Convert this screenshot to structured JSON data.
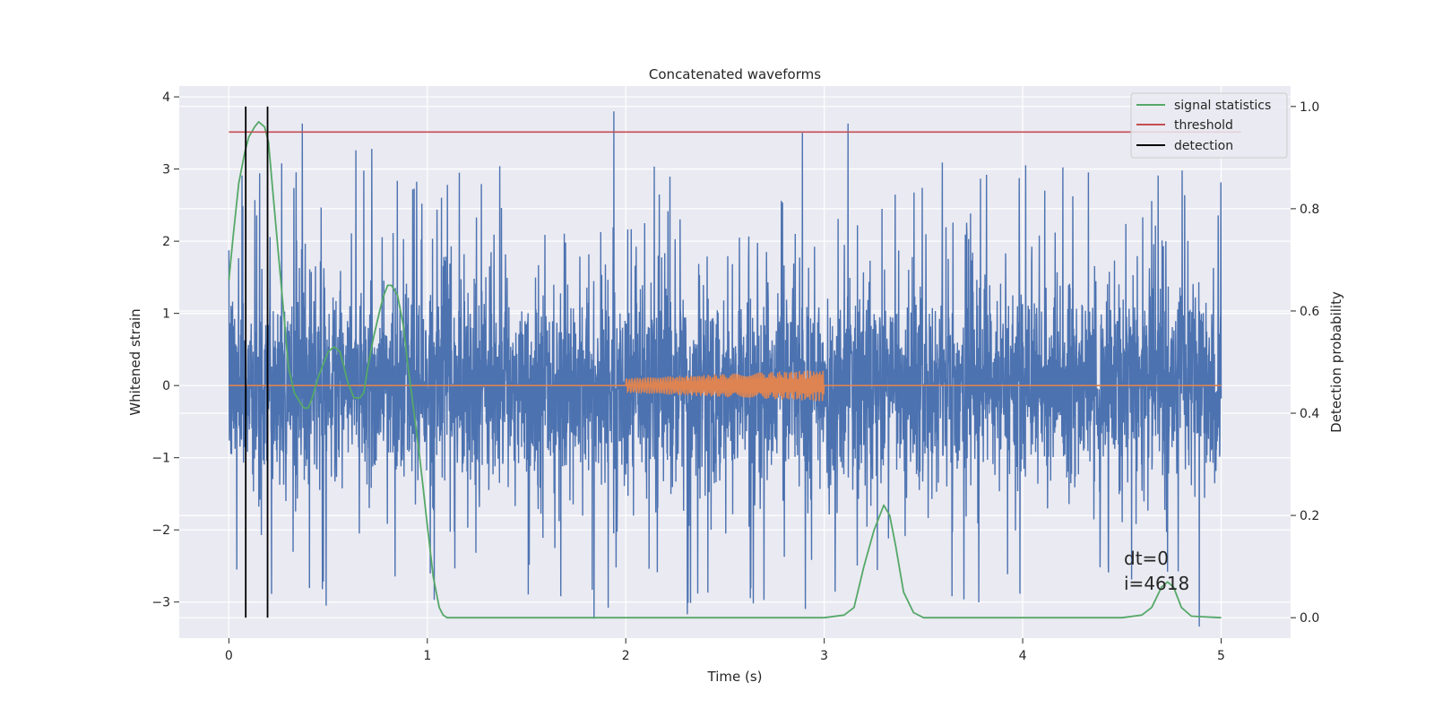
{
  "chart_data": {
    "type": "line",
    "title": "Concatenated waveforms",
    "xlabel": "Time (s)",
    "ylabel": "Whitened strain",
    "ylabel_right": "Detection probability",
    "xlim": [
      -0.25,
      5.35
    ],
    "ylim": [
      -3.5,
      4.15
    ],
    "ylim_right": [
      -0.04,
      1.04
    ],
    "x_ticks": [
      0,
      1,
      2,
      3,
      4,
      5
    ],
    "y_ticks": [
      -3,
      -2,
      -1,
      0,
      1,
      2,
      3,
      4
    ],
    "y_right_ticks": [
      0.0,
      0.2,
      0.4,
      0.6,
      0.8,
      1.0
    ],
    "x_tick_labels": [
      "0",
      "1",
      "2",
      "3",
      "4",
      "5"
    ],
    "y_tick_labels": [
      "−3",
      "−2",
      "−1",
      "0",
      "1",
      "2",
      "3",
      "4"
    ],
    "y_right_tick_labels": [
      "0.0",
      "0.2",
      "0.4",
      "0.6",
      "0.8",
      "1.0"
    ],
    "grid": true,
    "legend_position": "top-right",
    "colors": {
      "strain": "#4c72b0",
      "injected": "#dd8452",
      "signal_statistics": "#55a868",
      "threshold": "#c44e52",
      "detection": "#000000",
      "axes_bg": "#eaeaf2",
      "grid": "#ffffff"
    },
    "series": [
      {
        "name": "",
        "axis": "left",
        "kind": "noise",
        "x_range": [
          0,
          5
        ],
        "typical_range": [
          -1.5,
          1.5
        ],
        "peak_values": [
          {
            "x": 0.37,
            "y": 3.63
          },
          {
            "x": 1.94,
            "y": 3.8
          },
          {
            "x": 2.89,
            "y": 3.5
          },
          {
            "x": 3.12,
            "y": 3.63
          },
          {
            "x": 0.72,
            "y": 3.28
          },
          {
            "x": 0.64,
            "y": 3.26
          },
          {
            "x": 0.04,
            "y": -2.55
          },
          {
            "x": 0.49,
            "y": -3.05
          },
          {
            "x": 1.84,
            "y": -3.23
          },
          {
            "x": 2.31,
            "y": -3.17
          },
          {
            "x": 4.89,
            "y": -3.34
          }
        ]
      },
      {
        "name": "",
        "axis": "left",
        "kind": "chirp",
        "x_range": [
          0,
          5
        ],
        "burst_range": [
          2.0,
          3.0
        ],
        "amplitude_start": 0.1,
        "amplitude_end": 0.22
      },
      {
        "name": "signal statistics",
        "axis": "right",
        "x": [
          0,
          0.02,
          0.05,
          0.08,
          0.1,
          0.13,
          0.15,
          0.18,
          0.2,
          0.22,
          0.25,
          0.28,
          0.3,
          0.33,
          0.36,
          0.38,
          0.4,
          0.42,
          0.45,
          0.48,
          0.5,
          0.53,
          0.56,
          0.58,
          0.6,
          0.63,
          0.66,
          0.68,
          0.7,
          0.73,
          0.76,
          0.78,
          0.8,
          0.82,
          0.85,
          0.88,
          0.9,
          0.93,
          0.96,
          0.98,
          1.0,
          1.03,
          1.06,
          1.08,
          1.1,
          1.2,
          1.5,
          2.0,
          2.5,
          3.0,
          3.1,
          3.15,
          3.2,
          3.25,
          3.3,
          3.33,
          3.36,
          3.4,
          3.45,
          3.5,
          4.0,
          4.5,
          4.6,
          4.65,
          4.7,
          4.73,
          4.76,
          4.8,
          4.85,
          5.0
        ],
        "values": [
          0.66,
          0.74,
          0.85,
          0.91,
          0.94,
          0.96,
          0.97,
          0.96,
          0.93,
          0.84,
          0.71,
          0.58,
          0.49,
          0.44,
          0.42,
          0.41,
          0.41,
          0.43,
          0.47,
          0.5,
          0.52,
          0.53,
          0.52,
          0.49,
          0.46,
          0.43,
          0.43,
          0.44,
          0.49,
          0.55,
          0.6,
          0.63,
          0.65,
          0.65,
          0.63,
          0.57,
          0.5,
          0.41,
          0.32,
          0.25,
          0.18,
          0.08,
          0.02,
          0.005,
          0.0,
          0.0,
          0.0,
          0.0,
          0.0,
          0.0,
          0.005,
          0.02,
          0.1,
          0.17,
          0.22,
          0.2,
          0.14,
          0.05,
          0.01,
          0.0,
          0.0,
          0.0,
          0.005,
          0.02,
          0.06,
          0.07,
          0.06,
          0.02,
          0.003,
          0.0
        ]
      },
      {
        "name": "threshold",
        "axis": "right",
        "x": [
          0,
          5.1
        ],
        "values": [
          0.95,
          0.95
        ]
      },
      {
        "name": "detection",
        "axis": "right",
        "kind": "vlines",
        "x": [
          0.085,
          0.195
        ],
        "y_range": [
          0.0,
          1.0
        ]
      }
    ],
    "annotations": [
      "dt=0",
      "i=4618"
    ]
  }
}
